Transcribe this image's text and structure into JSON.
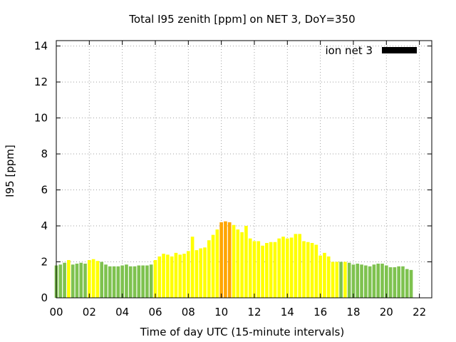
{
  "chart_data": {
    "type": "bar",
    "title": "Total I95 zenith [ppm] on NET 3, DoY=350",
    "xlabel": "Time of day UTC (15-minute intervals)",
    "ylabel": "I95 [ppm]",
    "xlim": [
      0,
      22.75
    ],
    "ylim": [
      0,
      14.3
    ],
    "x_ticks": [
      "00",
      "02",
      "04",
      "06",
      "08",
      "10",
      "12",
      "14",
      "16",
      "18",
      "20",
      "22"
    ],
    "y_ticks": [
      "0",
      "2",
      "4",
      "6",
      "8",
      "10",
      "12",
      "14"
    ],
    "grid": true,
    "legend": {
      "position": "top-right",
      "entries": [
        {
          "label": "ion net 3",
          "color": "#000000"
        }
      ]
    },
    "color_map": {
      "green": "#7ec24f",
      "yellow": "#ffff00",
      "orange": "#ffa500"
    },
    "series": [
      {
        "name": "ion net 3",
        "x_unit": "hours UTC",
        "interval_hours": 0.25,
        "values": [
          1.8,
          1.85,
          1.95,
          2.1,
          1.85,
          1.9,
          1.95,
          1.9,
          2.1,
          2.15,
          2.05,
          2.0,
          1.85,
          1.75,
          1.75,
          1.75,
          1.8,
          1.85,
          1.75,
          1.75,
          1.8,
          1.8,
          1.8,
          1.85,
          2.1,
          2.3,
          2.45,
          2.4,
          2.3,
          2.5,
          2.4,
          2.45,
          2.6,
          3.4,
          2.65,
          2.75,
          2.8,
          3.2,
          3.5,
          3.8,
          4.2,
          4.25,
          4.2,
          4.05,
          3.8,
          3.65,
          4.0,
          3.3,
          3.15,
          3.15,
          2.9,
          3.05,
          3.1,
          3.1,
          3.3,
          3.4,
          3.3,
          3.35,
          3.55,
          3.55,
          3.15,
          3.1,
          3.05,
          2.95,
          2.35,
          2.5,
          2.3,
          2.0,
          2.0,
          2.0,
          2.0,
          1.95,
          1.85,
          1.9,
          1.85,
          1.8,
          1.75,
          1.85,
          1.9,
          1.9,
          1.8,
          1.7,
          1.7,
          1.75,
          1.75,
          1.6,
          1.55
        ],
        "colors": [
          "green",
          "green",
          "green",
          "yellow",
          "green",
          "green",
          "green",
          "green",
          "yellow",
          "yellow",
          "yellow",
          "green",
          "green",
          "green",
          "green",
          "green",
          "green",
          "green",
          "green",
          "green",
          "green",
          "green",
          "green",
          "green",
          "yellow",
          "yellow",
          "yellow",
          "yellow",
          "yellow",
          "yellow",
          "yellow",
          "yellow",
          "yellow",
          "yellow",
          "yellow",
          "yellow",
          "yellow",
          "yellow",
          "yellow",
          "yellow",
          "orange",
          "orange",
          "orange",
          "yellow",
          "yellow",
          "yellow",
          "yellow",
          "yellow",
          "yellow",
          "yellow",
          "yellow",
          "yellow",
          "yellow",
          "yellow",
          "yellow",
          "yellow",
          "yellow",
          "yellow",
          "yellow",
          "yellow",
          "yellow",
          "yellow",
          "yellow",
          "yellow",
          "yellow",
          "yellow",
          "yellow",
          "yellow",
          "yellow",
          "green",
          "yellow",
          "green",
          "green",
          "green",
          "green",
          "green",
          "green",
          "green",
          "green",
          "green",
          "green",
          "green",
          "green",
          "green",
          "green",
          "green",
          "green"
        ]
      }
    ]
  }
}
